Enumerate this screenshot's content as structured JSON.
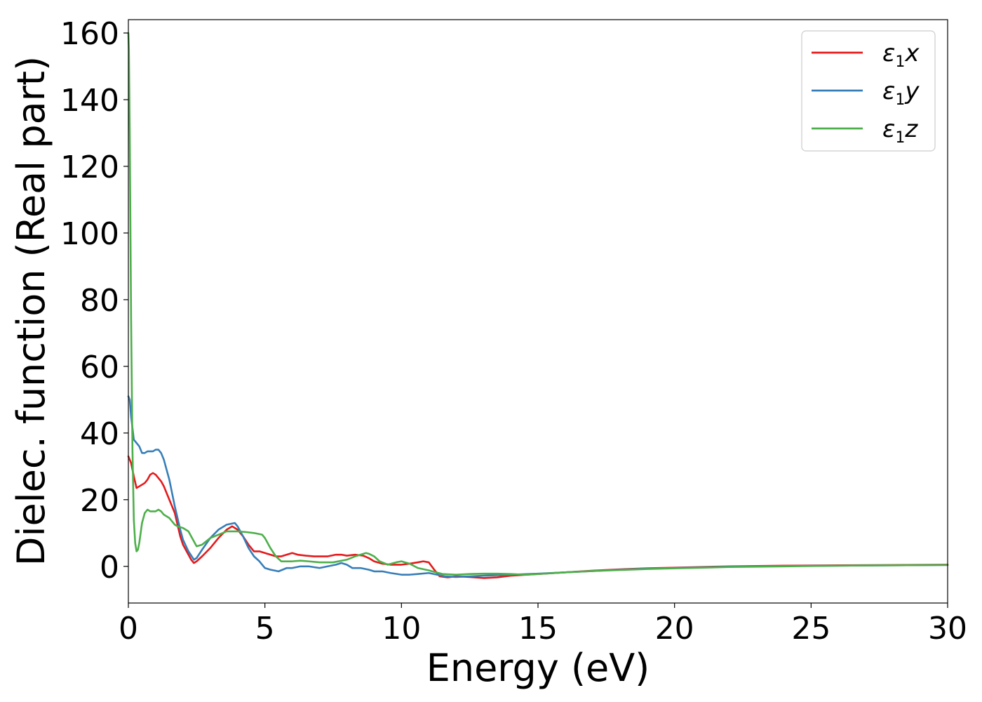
{
  "chart_data": {
    "type": "line",
    "title": "",
    "xlabel": "Energy (eV)",
    "ylabel": "Dielec. function (Real part)",
    "xlim": [
      0,
      30
    ],
    "ylim": [
      -11,
      164
    ],
    "xticks": [
      0,
      5,
      10,
      15,
      20,
      25,
      30
    ],
    "yticks": [
      0,
      20,
      40,
      60,
      80,
      100,
      120,
      140,
      160
    ],
    "xtick_labels": [
      "0",
      "5",
      "10",
      "15",
      "20",
      "25",
      "30"
    ],
    "ytick_labels": [
      "0",
      "20",
      "40",
      "60",
      "80",
      "100",
      "120",
      "140",
      "160"
    ],
    "grid": false,
    "legend_position": "top-right",
    "series": [
      {
        "name": "ε1x",
        "legend": {
          "sym": "ε",
          "sub": "1",
          "var": "x"
        },
        "color": "#e41a1c",
        "x": [
          0,
          0.1,
          0.2,
          0.3,
          0.4,
          0.5,
          0.6,
          0.7,
          0.8,
          0.9,
          1.0,
          1.1,
          1.2,
          1.3,
          1.5,
          1.7,
          1.9,
          2.0,
          2.1,
          2.2,
          2.3,
          2.4,
          2.5,
          2.7,
          3.0,
          3.3,
          3.6,
          3.8,
          4.0,
          4.2,
          4.4,
          4.6,
          4.8,
          5.0,
          5.2,
          5.4,
          5.6,
          5.8,
          6.0,
          6.2,
          6.5,
          6.8,
          7.0,
          7.3,
          7.6,
          7.8,
          8.0,
          8.3,
          8.6,
          8.8,
          9.0,
          9.3,
          9.6,
          10.0,
          10.3,
          10.6,
          10.8,
          11.0,
          11.2,
          11.4,
          11.7,
          12.0,
          12.5,
          13.0,
          13.5,
          14.0,
          15.0,
          16.0,
          17.0,
          18.0,
          19.0,
          20.0,
          22.0,
          24.0,
          26.0,
          28.0,
          30.0
        ],
        "y": [
          33,
          31,
          27,
          23.5,
          24,
          24.5,
          25,
          26,
          27.5,
          28,
          27.5,
          26.5,
          25.5,
          24,
          20,
          16,
          9,
          6.5,
          5,
          3.5,
          2,
          1,
          1.5,
          3,
          5.5,
          8.5,
          11,
          12,
          11,
          9,
          6.5,
          4.5,
          4.5,
          4,
          3.5,
          3,
          3,
          3.5,
          4,
          3.5,
          3.2,
          3,
          3,
          3,
          3.5,
          3.5,
          3.2,
          3.5,
          3.2,
          2.5,
          1.5,
          0.8,
          0.5,
          0.5,
          0.8,
          1.2,
          1.5,
          1.2,
          -1,
          -3,
          -3.3,
          -3,
          -3.2,
          -3.5,
          -3.3,
          -2.8,
          -2.3,
          -1.8,
          -1.3,
          -0.9,
          -0.6,
          -0.4,
          0,
          0.2,
          0.3,
          0.4,
          0.5
        ]
      },
      {
        "name": "ε1y",
        "legend": {
          "sym": "ε",
          "sub": "1",
          "var": "y"
        },
        "color": "#377eb8",
        "x": [
          0,
          0.05,
          0.1,
          0.2,
          0.3,
          0.4,
          0.5,
          0.6,
          0.7,
          0.8,
          0.9,
          1.0,
          1.1,
          1.2,
          1.3,
          1.5,
          1.7,
          1.9,
          2.0,
          2.2,
          2.4,
          2.5,
          2.7,
          3.0,
          3.3,
          3.6,
          3.9,
          4.0,
          4.2,
          4.4,
          4.6,
          4.8,
          5.0,
          5.2,
          5.5,
          5.8,
          6.0,
          6.3,
          6.6,
          7.0,
          7.3,
          7.6,
          7.8,
          8.0,
          8.2,
          8.5,
          8.8,
          9.0,
          9.3,
          9.6,
          10.0,
          10.3,
          10.6,
          11.0,
          11.3,
          11.6,
          12.0,
          12.5,
          13.0,
          14.0,
          15.0,
          16.0,
          17.0,
          18.0,
          19.0,
          20.0,
          22.0,
          24.0,
          26.0,
          28.0,
          30.0
        ],
        "y": [
          51,
          50,
          45,
          38,
          37,
          36,
          34,
          34,
          34.5,
          34.5,
          34.5,
          35,
          35,
          34,
          32,
          26,
          18,
          11,
          8,
          4.5,
          2,
          2.5,
          5,
          8.5,
          11,
          12.5,
          13,
          12,
          9,
          5.5,
          3,
          1.5,
          -0.5,
          -1,
          -1.5,
          -0.5,
          -0.5,
          0,
          0,
          -0.5,
          0,
          0.5,
          1,
          0.5,
          -0.5,
          -0.5,
          -1,
          -1.5,
          -1.5,
          -2,
          -2.5,
          -2.5,
          -2.3,
          -2,
          -2.5,
          -3,
          -3.2,
          -3,
          -2.8,
          -2.5,
          -2.2,
          -1.8,
          -1.4,
          -1.0,
          -0.7,
          -0.5,
          -0.1,
          0.1,
          0.2,
          0.3,
          0.4
        ]
      },
      {
        "name": "ε1z",
        "legend": {
          "sym": "ε",
          "sub": "1",
          "var": "z"
        },
        "color": "#4daf4a",
        "x": [
          0,
          0.02,
          0.05,
          0.1,
          0.15,
          0.2,
          0.25,
          0.3,
          0.35,
          0.4,
          0.5,
          0.6,
          0.7,
          0.8,
          0.9,
          1.0,
          1.1,
          1.2,
          1.3,
          1.4,
          1.5,
          1.6,
          1.7,
          1.8,
          2.0,
          2.2,
          2.4,
          2.5,
          2.7,
          3.0,
          3.3,
          3.6,
          3.9,
          4.0,
          4.3,
          4.6,
          4.9,
          5.0,
          5.2,
          5.4,
          5.6,
          6.0,
          6.3,
          6.6,
          7.0,
          7.5,
          8.0,
          8.3,
          8.5,
          8.7,
          8.8,
          9.0,
          9.2,
          9.5,
          9.8,
          10.0,
          10.3,
          10.6,
          11.0,
          11.5,
          12.0,
          12.5,
          13.0,
          13.5,
          14.0,
          14.5,
          15.0,
          16.0,
          17.0,
          18.0,
          19.0,
          20.0,
          22.0,
          24.0,
          26.0,
          28.0,
          30.0
        ],
        "y": [
          160,
          155,
          130,
          75,
          35,
          14,
          7,
          4.5,
          5,
          7,
          13,
          16,
          17,
          16.5,
          16.5,
          16.5,
          17,
          16.5,
          15.5,
          15,
          14.5,
          13.5,
          12.5,
          12,
          11.5,
          10.5,
          7.5,
          6,
          6.5,
          8.5,
          9.5,
          10.5,
          10.5,
          10.5,
          10.3,
          10,
          9.5,
          8.5,
          5.5,
          3,
          1.5,
          1.5,
          1.7,
          1.5,
          1.2,
          1.2,
          2,
          3,
          3.5,
          4,
          3.8,
          3,
          1.5,
          0.5,
          1.2,
          1.5,
          0.8,
          -0.5,
          -1.2,
          -2.3,
          -2.5,
          -2.3,
          -2.2,
          -2.2,
          -2.3,
          -2.5,
          -2.3,
          -1.8,
          -1.4,
          -1.1,
          -0.8,
          -0.6,
          -0.2,
          0,
          0.2,
          0.3,
          0.4
        ]
      }
    ]
  }
}
